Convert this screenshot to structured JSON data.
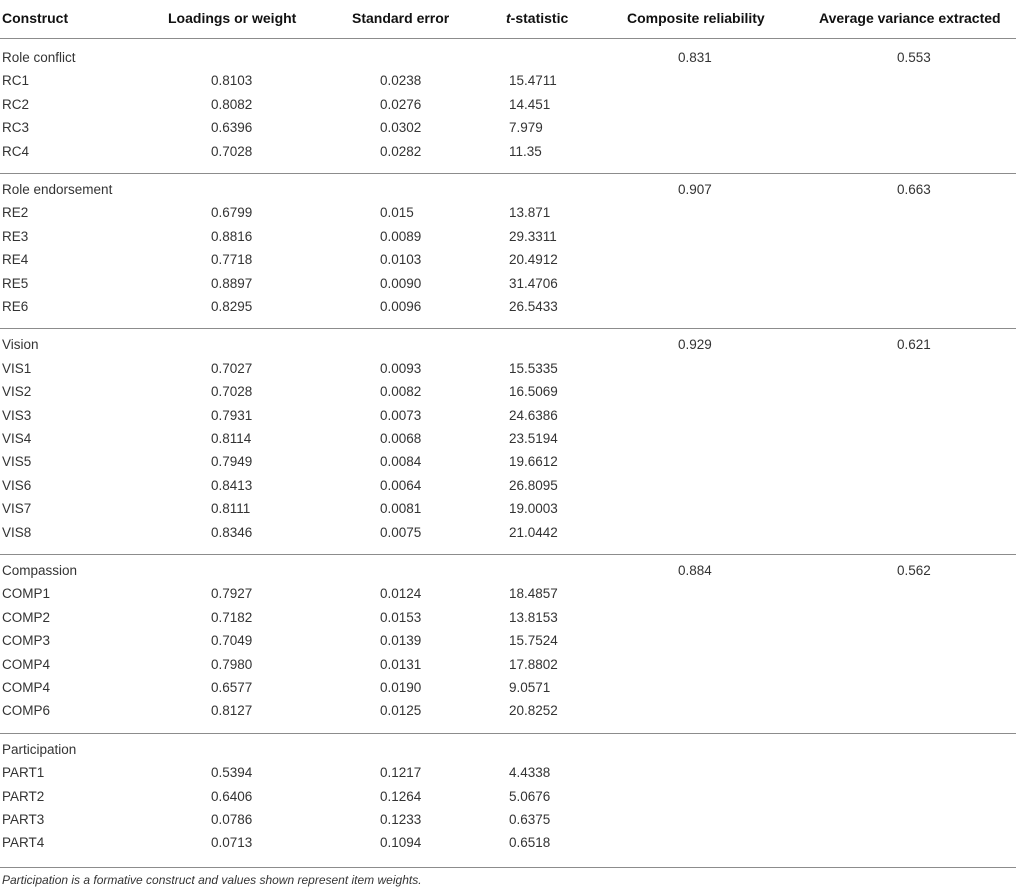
{
  "headers": {
    "construct": "Construct",
    "loadings": "Loadings or weight",
    "std_error": "Standard error",
    "t_prefix": "t",
    "t_rest": "-statistic",
    "composite": "Composite reliability",
    "ave": "Average variance extracted"
  },
  "groups": [
    {
      "name": "Role conflict",
      "cr": "0.831",
      "ave": "0.553",
      "items": [
        {
          "id": "RC1",
          "loading": "0.8103",
          "se": "0.0238",
          "t": "15.4711"
        },
        {
          "id": "RC2",
          "loading": "0.8082",
          "se": "0.0276",
          "t": "14.451"
        },
        {
          "id": "RC3",
          "loading": "0.6396",
          "se": "0.0302",
          "t": "7.979"
        },
        {
          "id": "RC4",
          "loading": "0.7028",
          "se": "0.0282",
          "t": "11.35"
        }
      ]
    },
    {
      "name": "Role endorsement",
      "cr": "0.907",
      "ave": "0.663",
      "items": [
        {
          "id": "RE2",
          "loading": "0.6799",
          "se": "0.015",
          "t": "13.871"
        },
        {
          "id": "RE3",
          "loading": "0.8816",
          "se": "0.0089",
          "t": "29.3311"
        },
        {
          "id": "RE4",
          "loading": "0.7718",
          "se": "0.0103",
          "t": "20.4912"
        },
        {
          "id": "RE5",
          "loading": "0.8897",
          "se": "0.0090",
          "t": "31.4706"
        },
        {
          "id": "RE6",
          "loading": "0.8295",
          "se": "0.0096",
          "t": "26.5433"
        }
      ]
    },
    {
      "name": "Vision",
      "cr": "0.929",
      "ave": "0.621",
      "items": [
        {
          "id": "VIS1",
          "loading": "0.7027",
          "se": "0.0093",
          "t": "15.5335"
        },
        {
          "id": "VIS2",
          "loading": "0.7028",
          "se": "0.0082",
          "t": "16.5069"
        },
        {
          "id": "VIS3",
          "loading": "0.7931",
          "se": "0.0073",
          "t": "24.6386"
        },
        {
          "id": "VIS4",
          "loading": "0.8114",
          "se": "0.0068",
          "t": "23.5194"
        },
        {
          "id": "VIS5",
          "loading": "0.7949",
          "se": "0.0084",
          "t": "19.6612"
        },
        {
          "id": "VIS6",
          "loading": "0.8413",
          "se": "0.0064",
          "t": "26.8095"
        },
        {
          "id": "VIS7",
          "loading": "0.8111",
          "se": "0.0081",
          "t": "19.0003"
        },
        {
          "id": "VIS8",
          "loading": "0.8346",
          "se": "0.0075",
          "t": "21.0442"
        }
      ]
    },
    {
      "name": "Compassion",
      "cr": "0.884",
      "ave": "0.562",
      "items": [
        {
          "id": "COMP1",
          "loading": "0.7927",
          "se": "0.0124",
          "t": "18.4857"
        },
        {
          "id": "COMP2",
          "loading": "0.7182",
          "se": "0.0153",
          "t": "13.8153"
        },
        {
          "id": "COMP3",
          "loading": "0.7049",
          "se": "0.0139",
          "t": "15.7524"
        },
        {
          "id": "COMP4",
          "loading": "0.7980",
          "se": "0.0131",
          "t": "17.8802"
        },
        {
          "id": "COMP4",
          "loading": "0.6577",
          "se": "0.0190",
          "t": "9.0571"
        },
        {
          "id": "COMP6",
          "loading": "0.8127",
          "se": "0.0125",
          "t": "20.8252"
        }
      ]
    },
    {
      "name": "Participation",
      "cr": "",
      "ave": "",
      "items": [
        {
          "id": "PART1",
          "loading": "0.5394",
          "se": "0.1217",
          "t": "4.4338"
        },
        {
          "id": "PART2",
          "loading": "0.6406",
          "se": "0.1264",
          "t": "5.0676"
        },
        {
          "id": "PART3",
          "loading": "0.0786",
          "se": "0.1233",
          "t": "0.6375"
        },
        {
          "id": "PART4",
          "loading": "0.0713",
          "se": "0.1094",
          "t": "0.6518"
        }
      ]
    }
  ],
  "footnote": "Participation is a formative construct and values shown represent item weights."
}
